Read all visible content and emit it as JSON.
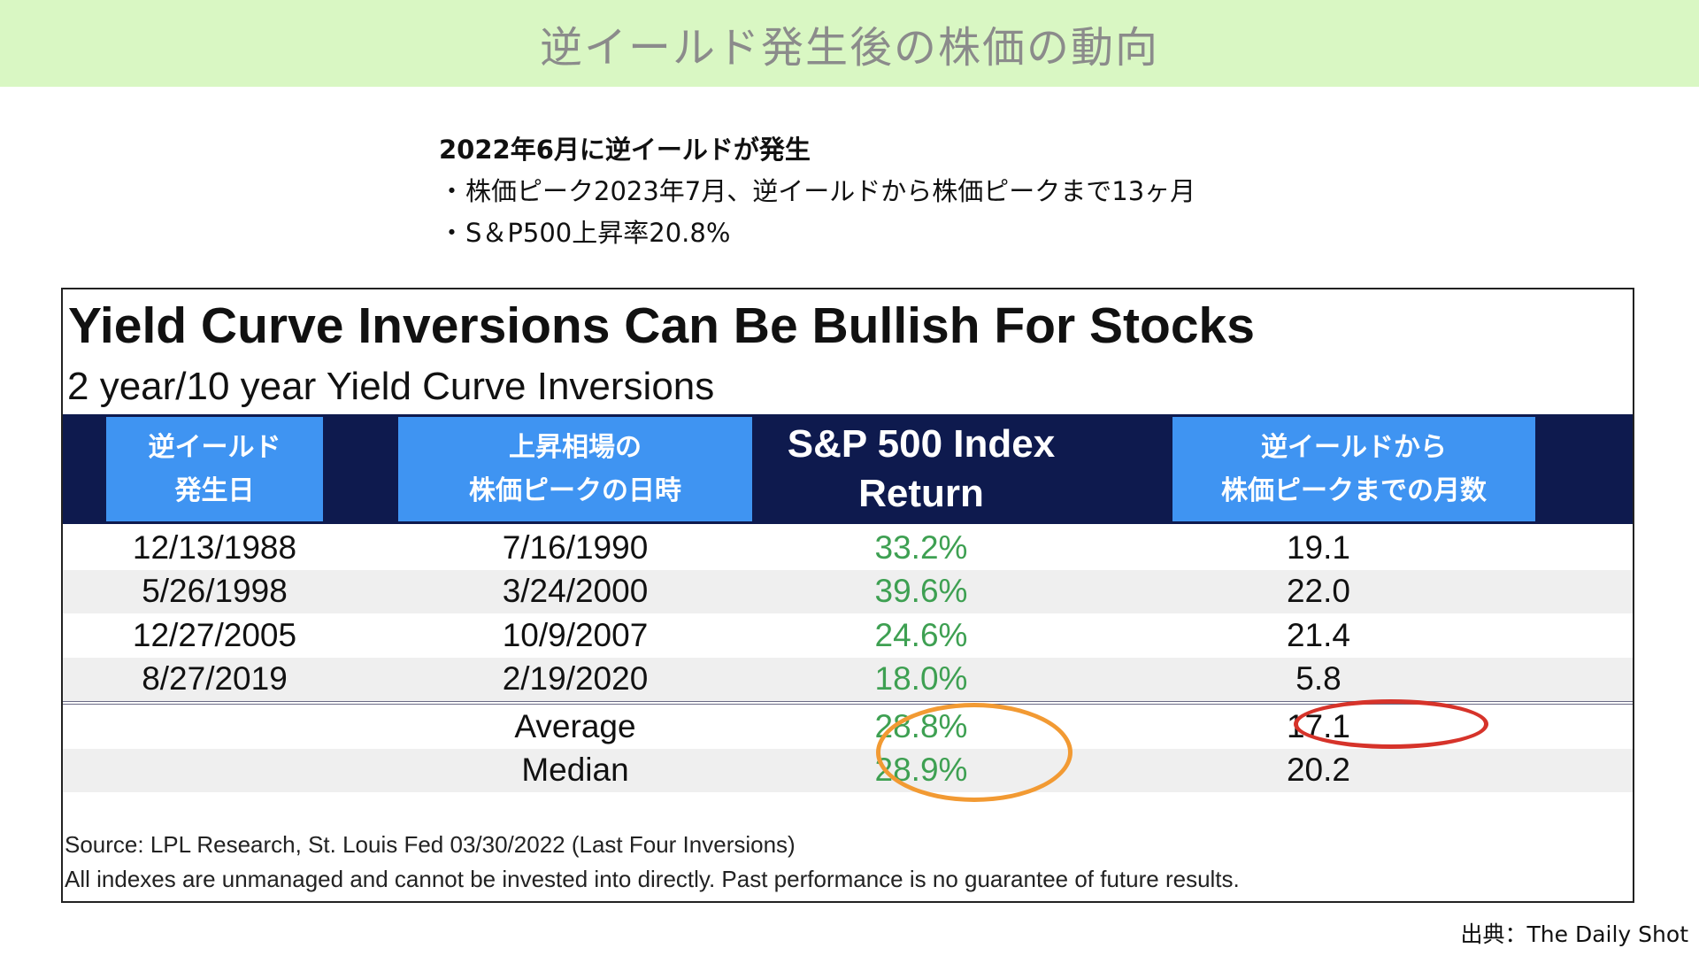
{
  "banner": {
    "title": "逆イールド発生後の株価の動向"
  },
  "notes": {
    "heading": "2022年6月に逆イールドが発生",
    "bullet": "・",
    "lines": [
      "株価ピーク2023年7月、逆イールドから株価ピークまで13ヶ月",
      "S＆P500上昇率20.8%"
    ]
  },
  "chart_data": {
    "type": "table",
    "title": "Yield Curve Inversions Can Be Bullish For Stocks",
    "subtitle": "2 year/10 year Yield Curve Inversions",
    "columns": [
      "逆イールド\n発生日",
      "上昇相場の\n株価ピークの日時",
      "S&P 500  Index\nReturn",
      "逆イールドから\n株価ピークまでの月数"
    ],
    "rows": [
      [
        "12/13/1988",
        "7/16/1990",
        "33.2%",
        "19.1"
      ],
      [
        "5/26/1998",
        "3/24/2000",
        "39.6%",
        "22.0"
      ],
      [
        "12/27/2005",
        "10/9/2007",
        "24.6%",
        "21.4"
      ],
      [
        "8/27/2019",
        "2/19/2020",
        "18.0%",
        "5.8"
      ]
    ],
    "summary": [
      [
        "",
        "Average",
        "28.8%",
        "17.1"
      ],
      [
        "",
        "Median",
        "28.9%",
        "20.2"
      ]
    ],
    "footnotes": [
      "Source: LPL Research, St. Louis Fed 03/30/2022 (Last Four Inversions)",
      "All indexes are unmanaged and cannot be invested into directly. Past performance is no guarantee of future results."
    ],
    "colors": {
      "header_band": "#0e1a4e",
      "header_cell": "#3f94f2",
      "return_text": "#3ea052",
      "highlight_average_median_return": "#f29a33",
      "highlight_average_months": "#d6332a"
    }
  },
  "credit": "出典：The Daily Shot"
}
